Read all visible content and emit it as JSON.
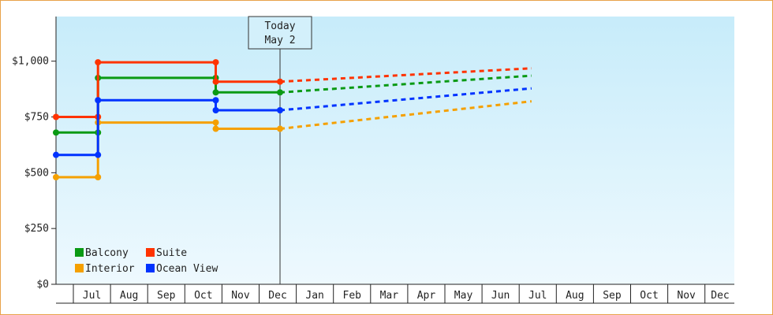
{
  "chart_data": {
    "type": "line",
    "title": "",
    "xlabel": "",
    "ylabel": "",
    "y_ticks": [
      "$0",
      "$250",
      "$500",
      "$750",
      "$1,000"
    ],
    "ylim": [
      0,
      1200
    ],
    "x_range": [
      0,
      12.8
    ],
    "months": [
      "Jul",
      "Aug",
      "Sep",
      "Oct",
      "Nov",
      "Dec",
      "Jan",
      "Feb",
      "Mar",
      "Apr",
      "May",
      "Jun",
      "Jul",
      "Aug",
      "Sep",
      "Oct",
      "Nov",
      "Dec"
    ],
    "today": {
      "line1": "Today",
      "line2": "May 2",
      "x": 6.03
    },
    "grid": false,
    "legend_position": "bottom-left",
    "series": [
      {
        "name": "Balcony",
        "color": "#0a9a14",
        "steps": [
          [
            0,
            680
          ],
          [
            1.13,
            680
          ],
          [
            1.13,
            925
          ],
          [
            4.3,
            925
          ],
          [
            4.3,
            860
          ],
          [
            6.03,
            860
          ]
        ],
        "forecast": [
          [
            6.03,
            860
          ],
          [
            12.8,
            935
          ]
        ]
      },
      {
        "name": "Suite",
        "color": "#ff3300",
        "steps": [
          [
            0,
            750
          ],
          [
            1.13,
            750
          ],
          [
            1.13,
            995
          ],
          [
            4.3,
            995
          ],
          [
            4.3,
            908
          ],
          [
            6.03,
            908
          ]
        ],
        "forecast": [
          [
            6.03,
            908
          ],
          [
            12.8,
            968
          ]
        ]
      },
      {
        "name": "Interior",
        "color": "#f5a000",
        "steps": [
          [
            0,
            480
          ],
          [
            1.13,
            480
          ],
          [
            1.13,
            725
          ],
          [
            4.3,
            725
          ],
          [
            4.3,
            697
          ],
          [
            6.03,
            697
          ]
        ],
        "forecast": [
          [
            6.03,
            697
          ],
          [
            12.8,
            820
          ]
        ]
      },
      {
        "name": "Ocean View",
        "color": "#0033ff",
        "steps": [
          [
            0,
            580
          ],
          [
            1.13,
            580
          ],
          [
            1.13,
            825
          ],
          [
            4.3,
            825
          ],
          [
            4.3,
            780
          ],
          [
            6.03,
            780
          ]
        ],
        "forecast": [
          [
            6.03,
            780
          ],
          [
            12.8,
            878
          ]
        ]
      }
    ]
  }
}
